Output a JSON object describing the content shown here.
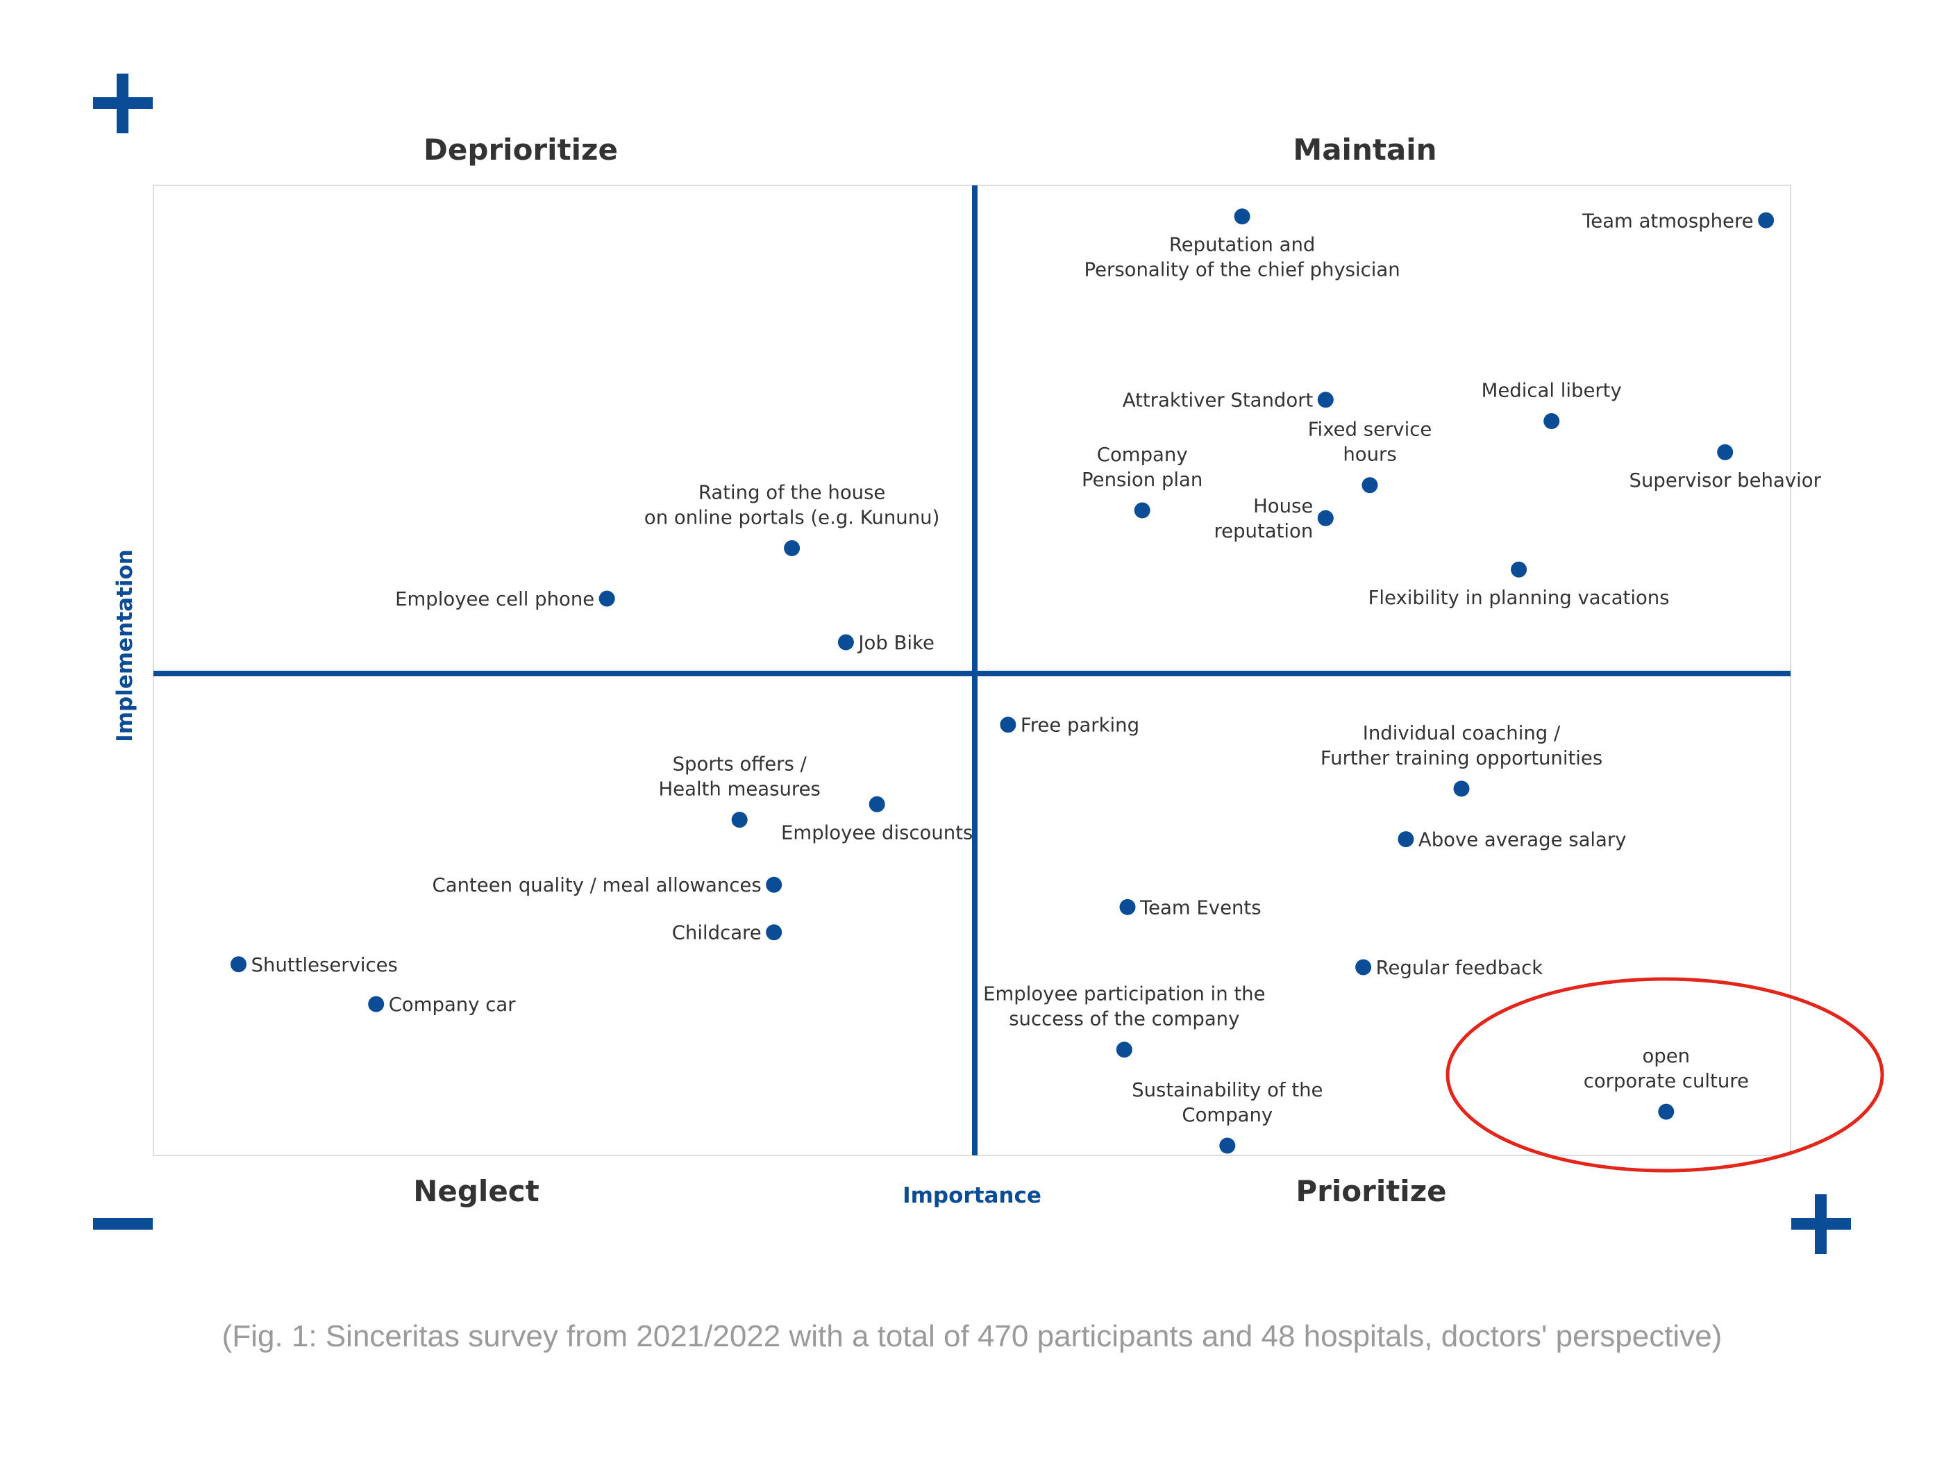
{
  "colors": {
    "primary": "#0b4c97",
    "quadrant_text": "#333333",
    "highlight": "#e3261b",
    "caption": "#9a9a9a",
    "frame": "#dddddd"
  },
  "corner_markers": {
    "top_left": "+",
    "bottom_left": "−",
    "bottom_right": "+"
  },
  "chart_data": {
    "type": "scatter",
    "xlabel": "Importance",
    "ylabel": "Implementation",
    "grid": false,
    "quadrants": {
      "top_left": "Deprioritize",
      "top_right": "Maintain",
      "bottom_left": "Neglect",
      "bottom_right": "Prioritize"
    },
    "points": [
      {
        "label": "Reputation and\nPersonality of the chief physician",
        "x": 0.665,
        "y": 0.968,
        "label_pos": "below"
      },
      {
        "label": "Team atmosphere",
        "x": 0.985,
        "y": 0.964,
        "label_pos": "left"
      },
      {
        "label": "Attraktiver Standort",
        "x": 0.716,
        "y": 0.779,
        "label_pos": "left"
      },
      {
        "label": "Medical liberty",
        "x": 0.854,
        "y": 0.757,
        "label_pos": "above"
      },
      {
        "label": "Fixed service\nhours",
        "x": 0.743,
        "y": 0.691,
        "label_pos": "above"
      },
      {
        "label": "Supervisor behavior",
        "x": 0.96,
        "y": 0.725,
        "label_pos": "below"
      },
      {
        "label": "Company\nPension plan",
        "x": 0.604,
        "y": 0.665,
        "label_pos": "above"
      },
      {
        "label": "House\nreputation",
        "x": 0.716,
        "y": 0.657,
        "label_pos": "left"
      },
      {
        "label": "Flexibility in planning vacations",
        "x": 0.834,
        "y": 0.604,
        "label_pos": "below"
      },
      {
        "label": "Rating of the house\non online portals (e.g. Kununu)",
        "x": 0.39,
        "y": 0.626,
        "label_pos": "above"
      },
      {
        "label": "Employee cell phone",
        "x": 0.277,
        "y": 0.574,
        "label_pos": "left"
      },
      {
        "label": "Job Bike",
        "x": 0.423,
        "y": 0.529,
        "label_pos": "right"
      },
      {
        "label": "Free parking",
        "x": 0.522,
        "y": 0.444,
        "label_pos": "right"
      },
      {
        "label": "Individual coaching /\nFurther training opportunities",
        "x": 0.799,
        "y": 0.378,
        "label_pos": "above"
      },
      {
        "label": "Sports offers /\nHealth measures",
        "x": 0.358,
        "y": 0.346,
        "label_pos": "above"
      },
      {
        "label": "Employee discounts",
        "x": 0.442,
        "y": 0.362,
        "label_pos": "below"
      },
      {
        "label": "Above average salary",
        "x": 0.765,
        "y": 0.326,
        "label_pos": "right"
      },
      {
        "label": "Canteen quality / meal allowances",
        "x": 0.379,
        "y": 0.279,
        "label_pos": "left"
      },
      {
        "label": "Team Events",
        "x": 0.595,
        "y": 0.256,
        "label_pos": "right"
      },
      {
        "label": "Childcare",
        "x": 0.379,
        "y": 0.23,
        "label_pos": "left"
      },
      {
        "label": "Shuttleservices",
        "x": 0.052,
        "y": 0.197,
        "label_pos": "right"
      },
      {
        "label": "Regular feedback",
        "x": 0.739,
        "y": 0.194,
        "label_pos": "right"
      },
      {
        "label": "Company car",
        "x": 0.136,
        "y": 0.156,
        "label_pos": "right"
      },
      {
        "label": "Employee participation in the\nsuccess of the company",
        "x": 0.593,
        "y": 0.109,
        "label_pos": "above"
      },
      {
        "label": "open\ncorporate culture",
        "x": 0.924,
        "y": 0.045,
        "label_pos": "above",
        "highlight": true
      },
      {
        "label": "Sustainability of the\nCompany",
        "x": 0.656,
        "y": 0.01,
        "label_pos": "above"
      }
    ]
  },
  "caption": "(Fig. 1: Sinceritas survey from 2021/2022 with a total of 470 participants and 48 hospitals, doctors' perspective)"
}
